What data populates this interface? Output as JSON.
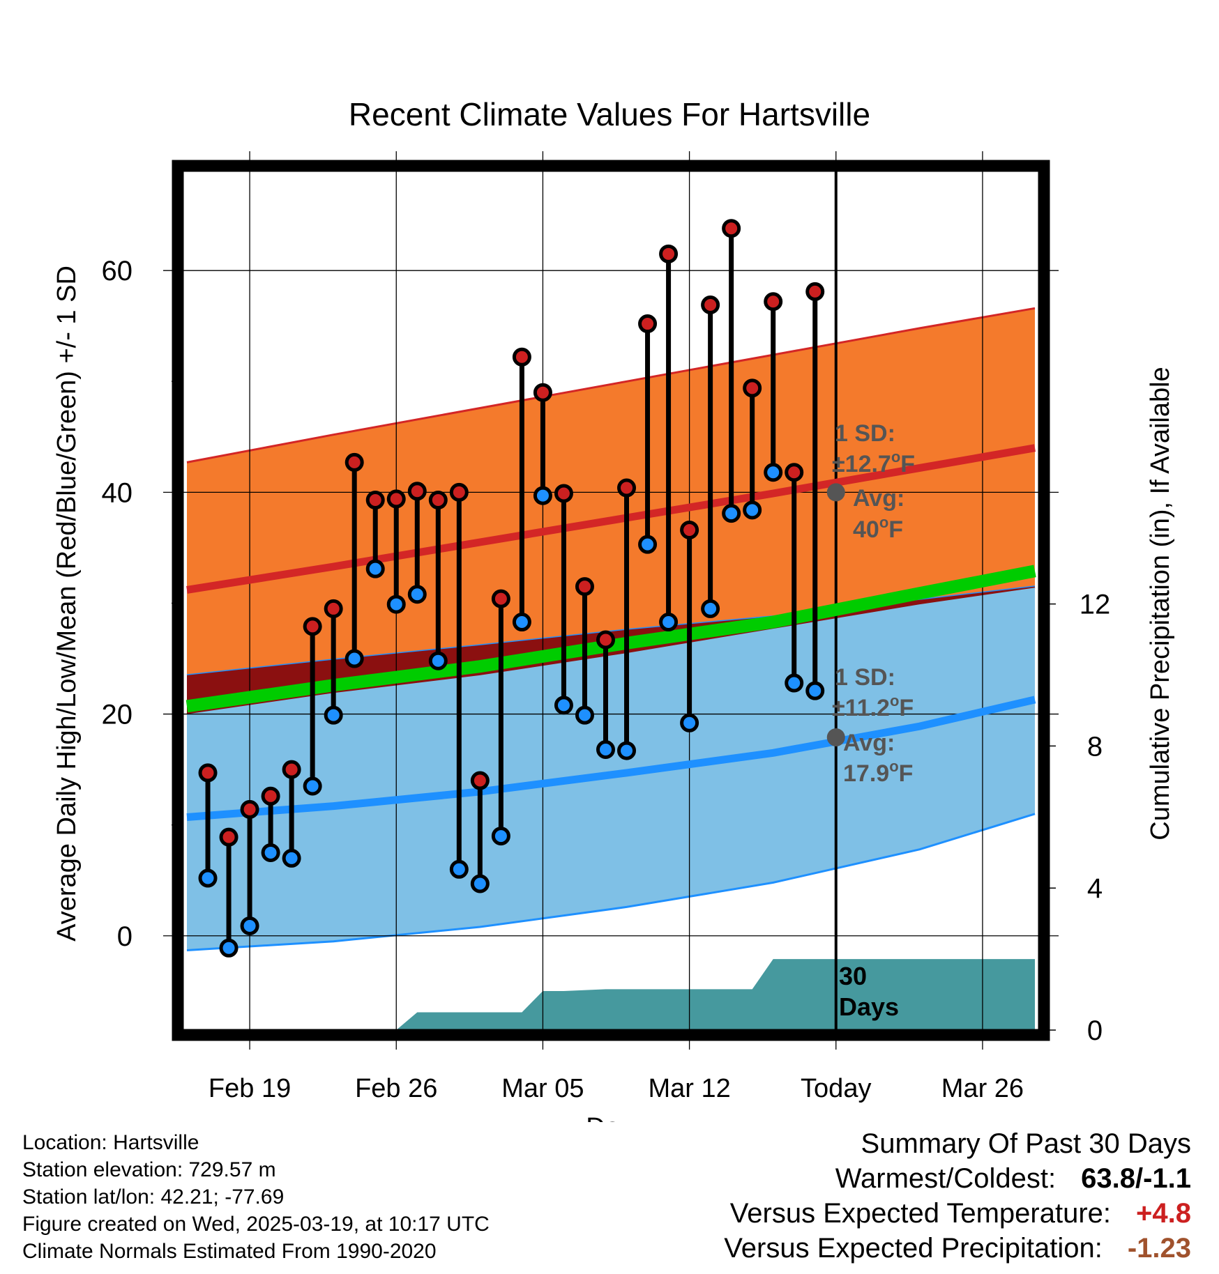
{
  "colors": {
    "high_band": "#f47a2c",
    "high_line": "#d32626",
    "low_band": "#7fc0e6",
    "low_line": "#1e90ff",
    "mean_line": "#00cc00",
    "overlap": "#8b1010",
    "precip": "#46999e",
    "high_marker": "#cc2020",
    "low_marker": "#1e90ff",
    "avg_dot": "#555555",
    "annotation": "#555555",
    "warm_value": "#cc2020",
    "precip_value": "#a0522d"
  },
  "chart_data": {
    "type": "line",
    "title": "Recent Climate Values For Hartsville",
    "xlabel": "Day",
    "ylabel": "Average Daily High/Low/Mean (Red/Blue/Green) +/- 1 SD",
    "y2label": "Cumulative Precipitation (in), If Available",
    "x_ticks": [
      "Feb 19",
      "Feb 26",
      "Mar 05",
      "Mar 12",
      "Today",
      "Mar 26"
    ],
    "x_tick_days": [
      0,
      7,
      14,
      21,
      28,
      35
    ],
    "xlim": [
      -3.2,
      37.7
    ],
    "ylim": [
      -8.5,
      69
    ],
    "y_ticks": [
      0,
      20,
      40,
      60
    ],
    "y_minor_ticks": [
      10,
      30,
      50
    ],
    "y2lim": [
      0,
      24.2
    ],
    "y2_ticks": [
      0,
      4,
      8,
      12
    ],
    "grid": true,
    "today_day": 28,
    "normals": {
      "days": [
        -3,
        4,
        11,
        18,
        25,
        32,
        37.5
      ],
      "high_avg": [
        31.2,
        33.3,
        35.5,
        37.7,
        39.9,
        42.2,
        44.0
      ],
      "high_upper": [
        42.7,
        45.2,
        47.6,
        50.0,
        52.4,
        54.8,
        56.6
      ],
      "high_lower": [
        20.0,
        21.9,
        23.5,
        25.5,
        27.7,
        29.9,
        31.4
      ],
      "low_avg": [
        10.7,
        11.7,
        13.0,
        14.7,
        16.5,
        18.9,
        21.3
      ],
      "low_upper": [
        23.5,
        24.9,
        26.2,
        27.6,
        28.8,
        30.3,
        31.5
      ],
      "low_lower": [
        -1.3,
        -0.5,
        0.8,
        2.6,
        4.8,
        7.8,
        11.0
      ],
      "mean_avg": [
        20.7,
        22.6,
        24.3,
        26.4,
        28.3,
        30.9,
        32.9
      ]
    },
    "observations": {
      "days": [
        -2,
        -1,
        0,
        1,
        2,
        3,
        4,
        5,
        6,
        7,
        8,
        9,
        10,
        11,
        12,
        13,
        14,
        15,
        16,
        17,
        18,
        19,
        20,
        21,
        22,
        23,
        24,
        25,
        26,
        27
      ],
      "high": [
        14.7,
        8.9,
        11.4,
        12.6,
        15.0,
        27.9,
        29.5,
        42.7,
        39.3,
        39.4,
        40.1,
        39.3,
        40.0,
        14.0,
        30.4,
        52.2,
        49.0,
        39.9,
        31.5,
        26.7,
        40.4,
        55.2,
        61.5,
        36.6,
        56.9,
        63.8,
        49.4,
        57.2,
        41.8,
        58.1
      ],
      "low": [
        5.2,
        -1.1,
        0.9,
        7.5,
        7.0,
        13.5,
        19.9,
        25.0,
        33.1,
        29.9,
        30.8,
        24.8,
        6.0,
        4.7,
        9.0,
        28.3,
        39.7,
        20.8,
        19.9,
        16.8,
        16.7,
        35.3,
        28.3,
        19.2,
        29.5,
        38.1,
        38.4,
        41.8,
        22.8,
        22.1
      ]
    },
    "precipitation": {
      "days": [
        -3,
        7,
        8,
        13,
        14,
        15,
        17,
        21,
        24,
        25,
        37.5
      ],
      "cumulative": [
        0,
        0,
        0.5,
        0.5,
        1.1,
        1.1,
        1.15,
        1.15,
        1.15,
        2.0,
        2.0
      ]
    },
    "annotations": {
      "high_sd_label": "1 SD:",
      "high_sd_value": "±12.7",
      "high_avg_label": "Avg:",
      "high_avg_value": "40",
      "low_sd_label": "1 SD:",
      "low_sd_value": "±11.2",
      "low_avg_label": "Avg:",
      "low_avg_value": "17.9",
      "degree_sign": "o",
      "unit": "F",
      "days_count": "30",
      "days_word": "Days"
    }
  },
  "info": {
    "location": "Location: Hartsville",
    "elevation": "Station elevation: 729.57 m",
    "latlon": "Station lat/lon: 42.21; -77.69",
    "created": "Figure created on Wed, 2025-03-19, at 10:17 UTC",
    "normals": "Climate Normals Estimated From 1990-2020"
  },
  "summary": {
    "title": "Summary Of Past 30 Days",
    "warmest_label": "Warmest/Coldest:",
    "warmest_value": "63.8/-1.1",
    "temp_label": "Versus Expected Temperature:",
    "temp_value": "+4.8",
    "precip_label": "Versus Expected Precipitation:",
    "precip_value": "-1.23"
  }
}
